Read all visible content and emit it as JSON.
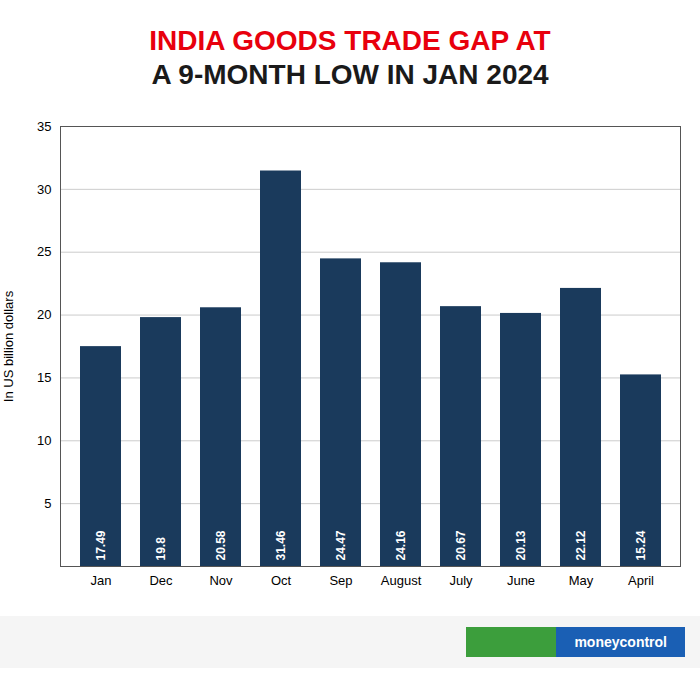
{
  "chart_data": {
    "type": "bar",
    "title": "INDIA GOODS TRADE GAP AT",
    "subtitle": "A 9-MONTH LOW IN JAN 2024",
    "y_label": "In US billion dollars",
    "categories": [
      "Jan",
      "Dec",
      "Nov",
      "Oct",
      "Sep",
      "August",
      "July",
      "June",
      "May",
      "April"
    ],
    "values": [
      17.49,
      19.8,
      20.58,
      31.46,
      24.47,
      24.16,
      20.67,
      20.13,
      22.12,
      15.24
    ],
    "color": "#1a3a5c",
    "ylim": [
      0,
      35
    ],
    "yticks": [
      5,
      10,
      15,
      20,
      25,
      30,
      35
    ],
    "grid": true,
    "data_labels": true,
    "annotations": [
      "moneycontrol"
    ]
  }
}
